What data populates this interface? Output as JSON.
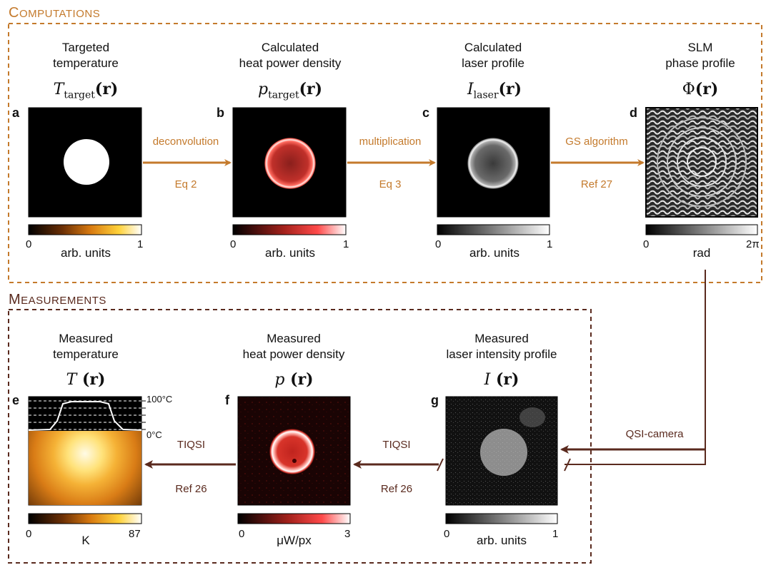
{
  "sections": {
    "computations_first": "C",
    "computations_rest": "OMPUTATIONS",
    "measurements_first": "M",
    "measurements_rest": "EASUREMENTS"
  },
  "colors": {
    "computations": "#c47a2c",
    "measurements": "#5a2a1e"
  },
  "panels": {
    "a": {
      "letter": "a",
      "title1": "Targeted",
      "title2": "temperature",
      "math": "T",
      "math_sub": "target",
      "math_arg": "(r)",
      "cmin": "0",
      "cmax": "1",
      "clabel": "arb. units"
    },
    "b": {
      "letter": "b",
      "title1": "Calculated",
      "title2": "heat power density",
      "math": "p",
      "math_sub": "target",
      "math_arg": "(r)",
      "cmin": "0",
      "cmax": "1",
      "clabel": "arb. units"
    },
    "c": {
      "letter": "c",
      "title1": "Calculated",
      "title2": "laser profile",
      "math": "I",
      "math_sub": "laser",
      "math_arg": "(r)",
      "cmin": "0",
      "cmax": "1",
      "clabel": "arb. units"
    },
    "d": {
      "letter": "d",
      "title1": "SLM",
      "title2": "phase profile",
      "math": "Φ",
      "math_sub": "",
      "math_arg": "(r)",
      "cmin": "0",
      "cmax": "2π",
      "clabel": "rad"
    },
    "e": {
      "letter": "e",
      "title1": "Measured",
      "title2": "temperature",
      "math": "T",
      "math_sub": "",
      "math_arg": " (r)",
      "cmin": "0",
      "cmax": "87",
      "clabel": "K",
      "t_high": "100°C",
      "t_low": "0°C"
    },
    "f": {
      "letter": "f",
      "title1": "Measured",
      "title2": "heat power density",
      "math": "p",
      "math_sub": "",
      "math_arg": " (r)",
      "cmin": "0",
      "cmax": "3",
      "clabel": "μW/px"
    },
    "g": {
      "letter": "g",
      "title1": "Measured",
      "title2": "laser intensity profile",
      "math": "I",
      "math_sub": "",
      "math_arg": " (r)",
      "cmin": "0",
      "cmax": "1",
      "clabel": "arb. units"
    }
  },
  "arrows": {
    "ab": {
      "top": "deconvolution",
      "bottom": "Eq 2"
    },
    "bc": {
      "top": "multiplication",
      "bottom": "Eq 3"
    },
    "cd": {
      "top": "GS algorithm",
      "bottom": "Ref 27"
    },
    "gf": {
      "top": "TIQSI",
      "bottom": "Ref 26"
    },
    "fe": {
      "top": "TIQSI",
      "bottom": "Ref 26"
    },
    "dg": {
      "label": "QSI-camera"
    }
  }
}
